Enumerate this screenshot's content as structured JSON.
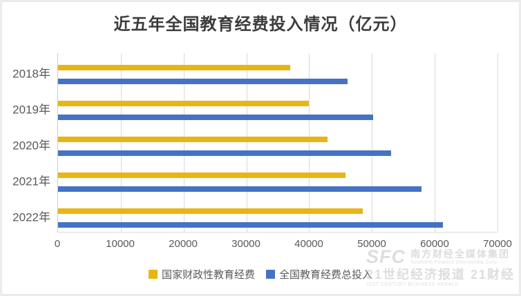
{
  "title": "近五年全国教育经费投入情况（亿元）",
  "chart_data": {
    "type": "bar",
    "orientation": "horizontal",
    "title": "近五年全国教育经费投入情况（亿元）",
    "categories": [
      "2018年",
      "2019年",
      "2020年",
      "2021年",
      "2022年"
    ],
    "series": [
      {
        "name": "国家财政性教育经费",
        "color": "#E9B515",
        "values": [
          37000,
          40000,
          42900,
          45800,
          48500
        ]
      },
      {
        "name": "全国教育经费总投入",
        "color": "#4472C4",
        "values": [
          46100,
          50200,
          53000,
          57900,
          61300
        ]
      }
    ],
    "xlabel": "",
    "ylabel": "",
    "xlim": [
      0,
      70000
    ],
    "x_ticks": [
      0,
      10000,
      20000,
      30000,
      40000,
      50000,
      60000,
      70000
    ],
    "grid": "vertical-only",
    "legend_position": "bottom-center"
  },
  "watermark": {
    "brand_abbr": "SFC",
    "brand_cn": "南方财经全媒体集团",
    "brand_en": "Southern Finance Omnimedia Corp.",
    "line2_cn": "21世纪经济报道 21财经",
    "line2_en": "21ST CENTURY BUSINESS HERALD"
  },
  "colors": {
    "series1": "#E9B515",
    "series2": "#4472C4",
    "gridline": "#D9D9D9",
    "axis_text": "#595959",
    "title_text": "#3C3C3C"
  }
}
